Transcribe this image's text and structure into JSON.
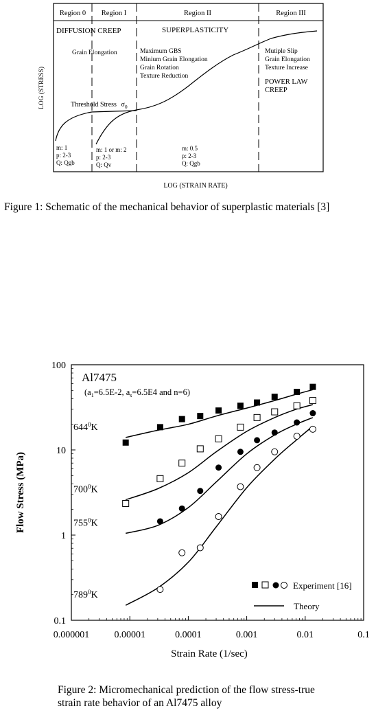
{
  "figure1": {
    "regions": [
      "Region 0",
      "Region I",
      "Region II",
      "Region III"
    ],
    "mechanisms": {
      "diffusion_creep": "DIFFUSION CREEP",
      "superplasticity": "SUPERPLASTICITY",
      "power_law_creep_line1": "POWER LAW",
      "power_law_creep_line2": "CREEP"
    },
    "notes": {
      "region0": [
        "Grain Elongation"
      ],
      "region2": [
        "Maximum GBS",
        "Minium Grain Elongation",
        "Grain Rotation",
        "Texture Reduction"
      ],
      "region3": [
        "Mutiple Slip",
        "Grain Elongation",
        "Texture Increase"
      ]
    },
    "threshold": {
      "label": "Threshold Stress",
      "symbol": "σ",
      "subscript": "0"
    },
    "params": {
      "region0": [
        "m: 1",
        "p: 2-3",
        "Q: Qgb"
      ],
      "region1": [
        "m: 1 or m: 2",
        "p: 2-3",
        "Q: Qv"
      ],
      "region2": [
        "m: 0.5",
        "p: 2-3",
        "Q: Qgb"
      ]
    },
    "ylabel": "LOG (STRESS)",
    "xlabel": "LOG (STRAIN RATE)"
  },
  "caption1": "Figure 1: Schematic of the mechanical behavior of superplastic materials [3]",
  "caption2_line1": "Figure 2: Micromechanical prediction of the flow stress-true",
  "caption2_line2": "strain rate behavior of an Al7475 alloy",
  "chart_data": {
    "type": "scatter",
    "xscale": "log",
    "yscale": "log",
    "xlim": [
      1e-06,
      0.1
    ],
    "ylim": [
      0.1,
      100
    ],
    "xticks": [
      "0.000001",
      "0.00001",
      "0.0001",
      "0.001",
      "0.01",
      "0.1"
    ],
    "yticks": [
      "0.1",
      "1",
      "10",
      "100"
    ],
    "xlabel": "Strain Rate (1/sec)",
    "ylabel": "Flow Stress (MPa)",
    "annotation_title": "Al7475",
    "annotation_params": {
      "a1": "6.5E-2",
      "as": "6.5E4",
      "n": "6"
    },
    "legend": {
      "experiment": "Experiment [16]",
      "theory": "Theory",
      "position": "bottom-right"
    },
    "series": [
      {
        "temperature": "644",
        "unit": "K",
        "marker": "filled-square",
        "exp_x": [
          8.5e-06,
          3.3e-05,
          7.8e-05,
          0.00016,
          0.00033,
          0.00078,
          0.0015,
          0.003,
          0.0072,
          0.0135
        ],
        "exp_y": [
          12.2,
          18.5,
          23,
          25,
          29,
          33,
          36,
          42,
          48,
          55
        ],
        "theory_x": [
          8.5e-06,
          3e-05,
          0.0001,
          0.0003,
          0.001,
          0.003,
          0.007,
          0.0135
        ],
        "theory_y": [
          14,
          17,
          20,
          25,
          31,
          38,
          45,
          51
        ]
      },
      {
        "temperature": "700",
        "unit": "K",
        "marker": "open-square",
        "exp_x": [
          8.5e-06,
          3.3e-05,
          7.8e-05,
          0.00016,
          0.00033,
          0.00078,
          0.0015,
          0.003,
          0.0072,
          0.0135
        ],
        "exp_y": [
          2.35,
          4.6,
          7,
          10.3,
          13.5,
          18.5,
          24,
          28,
          33,
          38
        ],
        "theory_x": [
          8.5e-06,
          3e-05,
          0.0001,
          0.0003,
          0.001,
          0.003,
          0.007,
          0.0135
        ],
        "theory_y": [
          2.6,
          3.5,
          5.4,
          9.5,
          16.5,
          24,
          30,
          34
        ]
      },
      {
        "temperature": "755",
        "unit": "K",
        "marker": "filled-circle",
        "exp_x": [
          3.3e-05,
          7.8e-05,
          0.00016,
          0.00033,
          0.00078,
          0.0015,
          0.003,
          0.0072,
          0.0135
        ],
        "exp_y": [
          1.45,
          2.05,
          3.3,
          6.2,
          9.5,
          13,
          16,
          21,
          27
        ],
        "theory_x": [
          8.5e-06,
          3e-05,
          0.0001,
          0.0003,
          0.001,
          0.003,
          0.007,
          0.0135
        ],
        "theory_y": [
          1.05,
          1.3,
          2.1,
          4.2,
          9,
          15,
          20,
          24
        ]
      },
      {
        "temperature": "789",
        "unit": "K",
        "marker": "open-circle",
        "exp_x": [
          3.3e-05,
          7.8e-05,
          0.00016,
          0.00033,
          0.00078,
          0.0015,
          0.003,
          0.0072,
          0.0135
        ],
        "exp_y": [
          0.23,
          0.62,
          0.71,
          1.65,
          3.7,
          6.2,
          9.5,
          14.5,
          17.5
        ],
        "theory_x": [
          8.5e-06,
          3e-05,
          0.0001,
          0.0003,
          0.001,
          0.003,
          0.007,
          0.0135
        ],
        "theory_y": [
          0.15,
          0.24,
          0.48,
          1.25,
          3.6,
          7.8,
          13,
          19
        ]
      }
    ]
  }
}
